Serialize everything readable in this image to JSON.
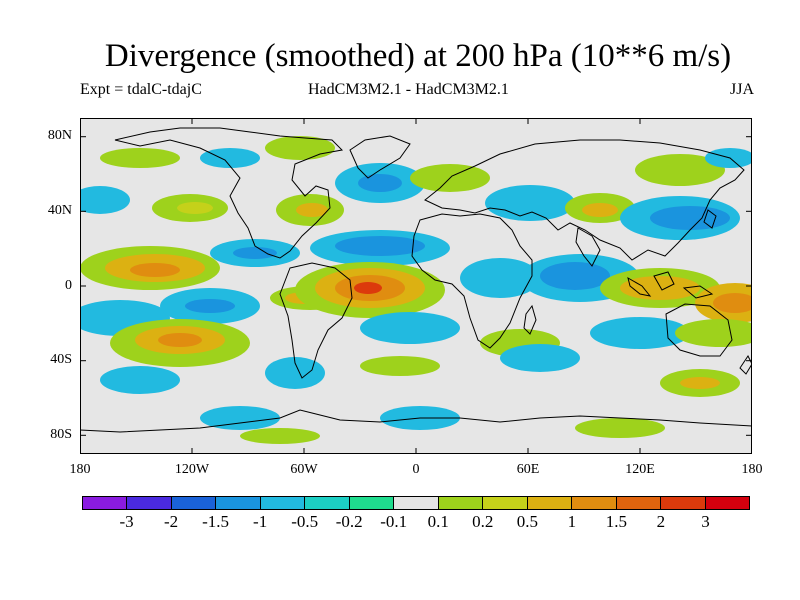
{
  "title": "Divergence (smoothed) at 200 hPa (10**6 m/s)",
  "experiment": "Expt = tdalC-tdajC",
  "model_label": "HadCM3M2.1 - HadCM3M2.1",
  "season": "JJA",
  "lat_labels": [
    "80N",
    "40N",
    "0",
    "40S",
    "80S"
  ],
  "lon_labels": [
    "180",
    "120W",
    "60W",
    "0",
    "60E",
    "120E",
    "180"
  ],
  "colorbar": {
    "labels": [
      "-3",
      "-2",
      "-1.5",
      "-1",
      "-0.5",
      "-0.2",
      "-0.1",
      "0.1",
      "0.2",
      "0.5",
      "1",
      "1.5",
      "2",
      "3"
    ],
    "colors": [
      "#8a1be0",
      "#4a2ae0",
      "#1a62d8",
      "#1a94de",
      "#22bae0",
      "#1ccfc4",
      "#1fdc8e",
      "#e4e4e4",
      "#9ed21c",
      "#c5d11a",
      "#dcb112",
      "#e08d10",
      "#e0640e",
      "#dc3a0c",
      "#d4000e"
    ]
  },
  "colors": {
    "land_background": "#e6e6e6",
    "coast": "#000000"
  }
}
